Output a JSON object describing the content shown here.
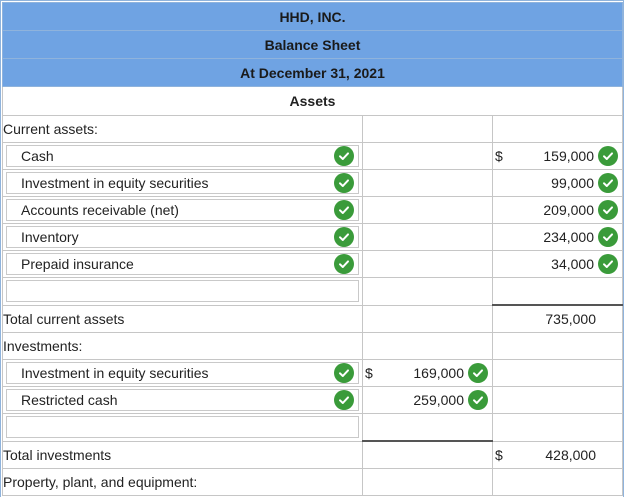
{
  "colors": {
    "header_bg": "#6fa3e3",
    "check_green": "#3a9b3a",
    "frame_border": "#8fb3dc"
  },
  "header": {
    "company": "HHD, INC.",
    "statement": "Balance Sheet",
    "date": "At December 31, 2021",
    "section": "Assets"
  },
  "current_assets": {
    "heading": "Current assets:",
    "items": [
      {
        "label": "Cash",
        "dollar": "$",
        "amount": "159,000",
        "icon": "check-circle-icon"
      },
      {
        "label": "Investment in equity securities",
        "dollar": "",
        "amount": "99,000",
        "icon": "check-circle-icon"
      },
      {
        "label": "Accounts receivable (net)",
        "dollar": "",
        "amount": "209,000",
        "icon": "check-circle-icon"
      },
      {
        "label": "Inventory",
        "dollar": "",
        "amount": "234,000",
        "icon": "check-circle-icon"
      },
      {
        "label": "Prepaid insurance",
        "dollar": "",
        "amount": "34,000",
        "icon": "check-circle-icon"
      }
    ],
    "total_label": "Total current assets",
    "total_amount": "735,000"
  },
  "investments": {
    "heading": "Investments:",
    "items": [
      {
        "label": "Investment in equity securities",
        "dollar": "$",
        "amount": "169,000",
        "icon": "check-circle-icon"
      },
      {
        "label": "Restricted cash",
        "dollar": "",
        "amount": "259,000",
        "icon": "check-circle-icon"
      }
    ],
    "total_label": "Total investments",
    "total_dollar": "$",
    "total_amount": "428,000"
  },
  "ppe": {
    "heading": "Property, plant, and equipment:"
  }
}
